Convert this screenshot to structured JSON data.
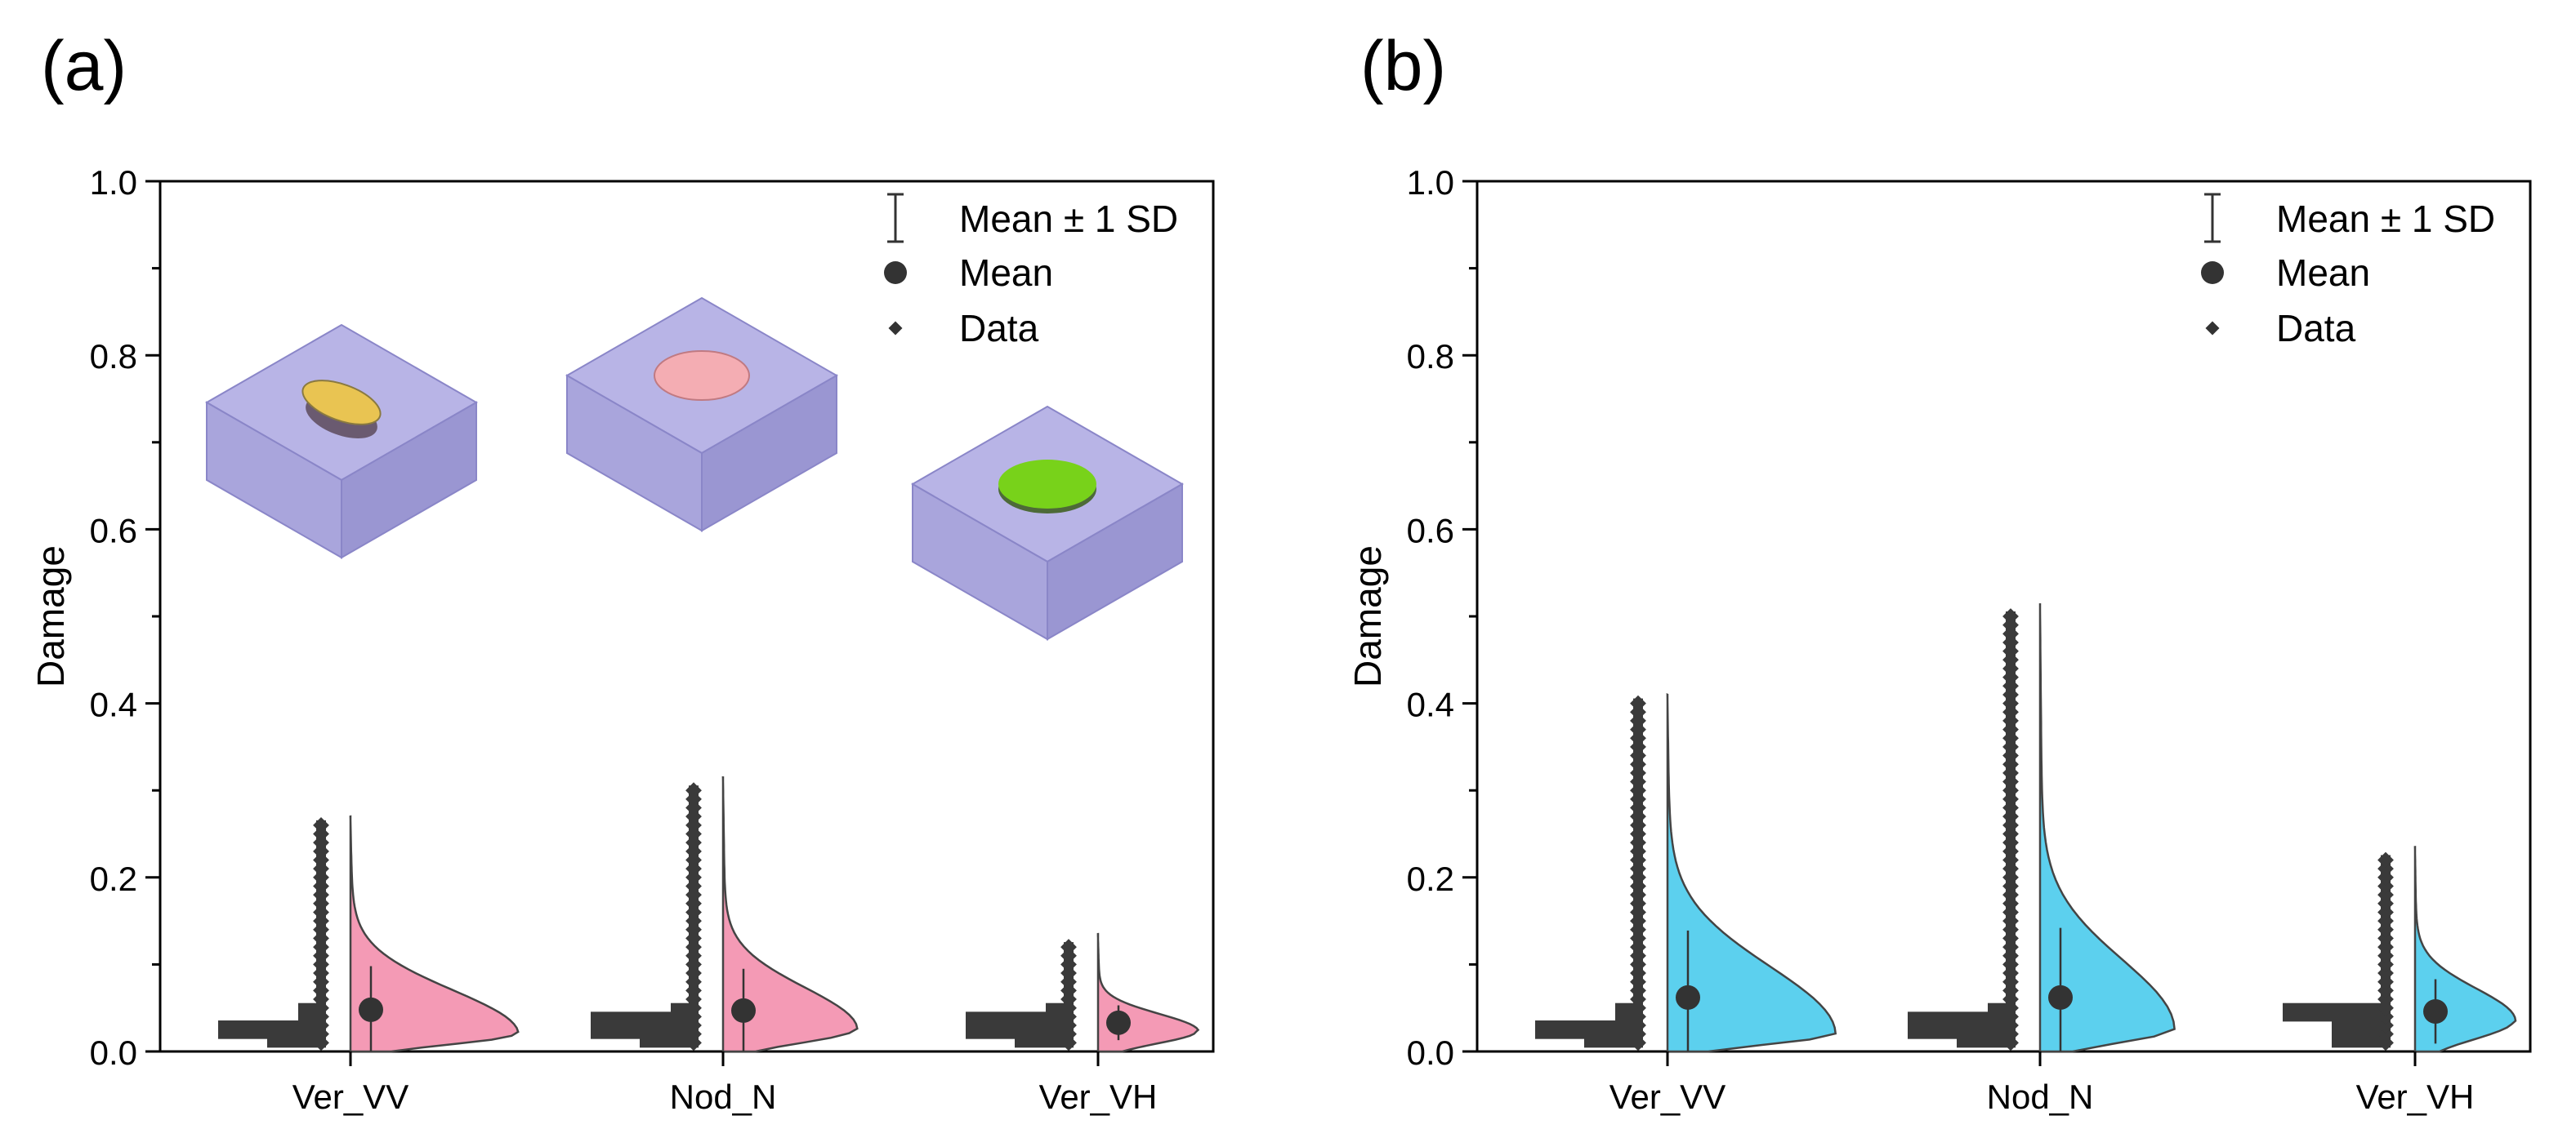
{
  "chart_data": [
    {
      "panel_label": "(a)",
      "type": "violin-half",
      "ylabel": "Damage",
      "ylim": [
        0.0,
        1.0
      ],
      "yticks": [
        "0.0",
        "0.2",
        "0.4",
        "0.6",
        "0.8",
        "1.0"
      ],
      "categories": [
        "Ver_VV",
        "Nod_N",
        "Ver_VH"
      ],
      "fill_color": "#f49ab5",
      "means": [
        0.048,
        0.047,
        0.033
      ],
      "sd": [
        0.05,
        0.048,
        0.02
      ],
      "max_values": [
        0.265,
        0.31,
        0.13
      ],
      "mode_values": [
        0.02,
        0.025,
        0.023
      ],
      "legend": [
        "Mean ± 1 SD",
        "Mean",
        "Data"
      ],
      "legend_position": "top-right",
      "insets": [
        "yellow",
        "pink",
        "green"
      ]
    },
    {
      "panel_label": "(b)",
      "type": "violin-half",
      "ylabel": "Damage",
      "ylim": [
        0.0,
        1.0
      ],
      "yticks": [
        "0.0",
        "0.2",
        "0.4",
        "0.6",
        "0.8",
        "1.0"
      ],
      "categories": [
        "Ver_VV",
        "Nod_N",
        "Ver_VH"
      ],
      "fill_color": "#5cd0ee",
      "means": [
        0.062,
        0.062,
        0.046
      ],
      "sd": [
        0.077,
        0.08,
        0.037
      ],
      "max_values": [
        0.405,
        0.51,
        0.23
      ],
      "mode_values": [
        0.02,
        0.025,
        0.035
      ],
      "legend": [
        "Mean ± 1 SD",
        "Mean",
        "Data"
      ],
      "legend_position": "top-right"
    }
  ]
}
